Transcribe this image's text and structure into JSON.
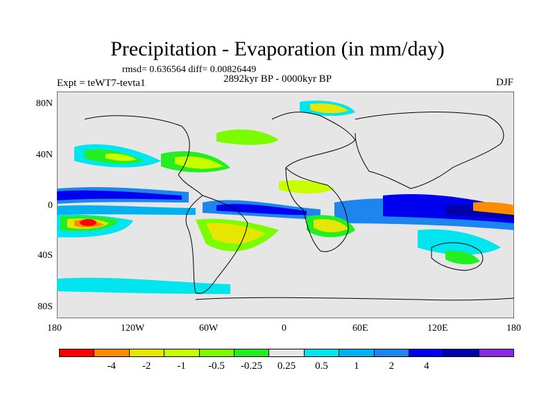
{
  "title": "Precipitation - Evaporation (in mm/day)",
  "stats": "rmsd= 0.636564  diff= 0.00826449",
  "experiment": "Expt = teWT7-tevta1",
  "period": "2892kyr BP - 0000kyr BP",
  "season": "DJF",
  "x_ticks": [
    "180",
    "120W",
    "60W",
    "0",
    "60E",
    "120E",
    "180"
  ],
  "y_ticks": [
    "80N",
    "40N",
    "0",
    "40S",
    "80S"
  ],
  "colorbar": {
    "colors": [
      "#ff0000",
      "#ff8c00",
      "#e6e600",
      "#c8ff00",
      "#7cfc00",
      "#22ee22",
      "#e6e6e6",
      "#00e5ee",
      "#00b2ee",
      "#1c86ee",
      "#0000ee",
      "#0000aa",
      "#8a2be2"
    ],
    "labels": [
      "-4",
      "-2",
      "-1",
      "-0.5",
      "-0.25",
      "0.25",
      "0.5",
      "1",
      "2",
      "4"
    ]
  },
  "colors": {
    "land_background": "#e6e6e6",
    "coastline": "#000000"
  }
}
